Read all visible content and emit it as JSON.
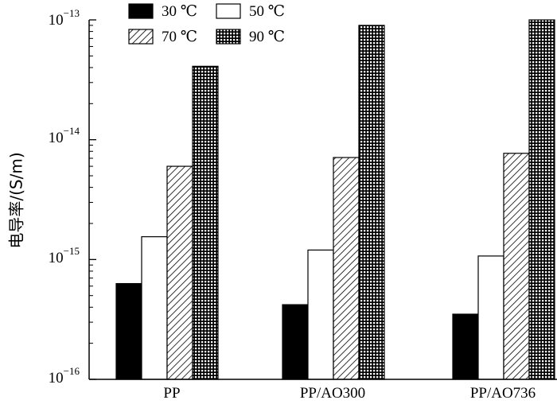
{
  "chart_data": {
    "type": "bar",
    "ylabel": "电导率/(S/m)",
    "yscale": "log",
    "ylim": [
      1e-16,
      1e-13
    ],
    "y_tick_labels": [
      {
        "base": "10",
        "exp": "−16"
      },
      {
        "base": "10",
        "exp": "−15"
      },
      {
        "base": "10",
        "exp": "−14"
      },
      {
        "base": "10",
        "exp": "−13"
      }
    ],
    "categories": [
      "PP",
      "PP/AO300",
      "PP/AO736"
    ],
    "series": [
      {
        "name": "30 ℃",
        "fill": "solid",
        "color": "#000000",
        "values": [
          6.3e-16,
          4.2e-16,
          3.5e-16
        ]
      },
      {
        "name": "50 ℃",
        "fill": "none",
        "color": "#ffffff",
        "values": [
          1.55e-15,
          1.2e-15,
          1.07e-15
        ]
      },
      {
        "name": "70 ℃",
        "fill": "hatch",
        "color": "#000000",
        "values": [
          6e-15,
          7.1e-15,
          7.7e-15
        ]
      },
      {
        "name": "90 ℃",
        "fill": "grid",
        "color": "#000000",
        "values": [
          4.1e-14,
          9e-14,
          1e-13
        ]
      }
    ],
    "legend": "top-left",
    "grid": false
  }
}
